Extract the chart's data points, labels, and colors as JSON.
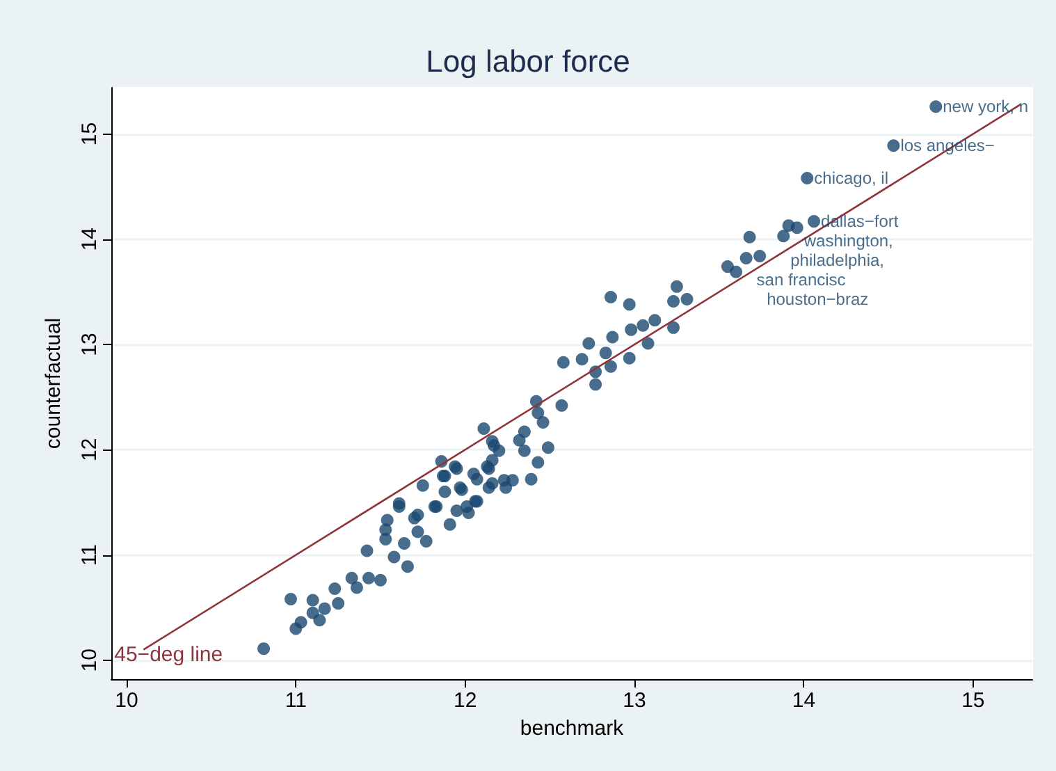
{
  "chart_data": {
    "type": "scatter",
    "title": "Log labor force",
    "xlabel": "benchmark",
    "ylabel": "counterfactual",
    "xlim": [
      9.91,
      15.35
    ],
    "ylim": [
      9.82,
      15.44
    ],
    "xticks": [
      10,
      11,
      12,
      13,
      14,
      15
    ],
    "yticks": [
      10,
      11,
      12,
      13,
      14,
      15
    ],
    "grid": "y",
    "legend": false,
    "marker": "circle",
    "series": [
      {
        "color": "#1a476f",
        "x": [
          14.78,
          14.53,
          14.02,
          14.06,
          13.91,
          13.96,
          13.68,
          13.88,
          13.74,
          13.66,
          13.55,
          13.6,
          10.81,
          10.97,
          11.0,
          11.03,
          11.1,
          11.1,
          11.14,
          11.17,
          11.23,
          11.25,
          11.33,
          11.36,
          11.42,
          11.43,
          11.5,
          11.53,
          11.54,
          11.58,
          11.61,
          11.64,
          11.66,
          11.7,
          11.72,
          11.75,
          11.77,
          11.82,
          11.86,
          11.87,
          11.88,
          11.91,
          11.94,
          11.95,
          11.98,
          12.02,
          12.05,
          12.07,
          12.11,
          12.13,
          12.16,
          12.17,
          11.53,
          13.25,
          13.23,
          13.31,
          12.86,
          12.97,
          13.23,
          13.12,
          13.05,
          12.98,
          12.87,
          12.73,
          13.08,
          12.97,
          12.83,
          12.86,
          12.77,
          12.77,
          12.69,
          12.58,
          12.57,
          12.42,
          12.43,
          12.46,
          12.49,
          12.43,
          12.39,
          12.35,
          12.32,
          12.35,
          12.2,
          12.16,
          12.16,
          12.14,
          12.23,
          12.28,
          12.24,
          12.14,
          12.07,
          11.95,
          11.88,
          12.06,
          11.97,
          11.61,
          11.83,
          12.01,
          11.72
        ],
        "values": [
          15.26,
          14.89,
          14.58,
          14.17,
          14.13,
          14.11,
          14.02,
          14.03,
          13.84,
          13.82,
          13.74,
          13.69,
          10.11,
          10.58,
          10.3,
          10.36,
          10.57,
          10.45,
          10.38,
          10.49,
          10.68,
          10.54,
          10.78,
          10.69,
          11.04,
          10.78,
          10.76,
          11.15,
          11.33,
          10.98,
          11.46,
          11.11,
          10.89,
          11.35,
          11.22,
          11.66,
          11.13,
          11.46,
          11.89,
          11.75,
          11.6,
          11.29,
          11.84,
          11.42,
          11.62,
          11.4,
          11.77,
          11.51,
          12.2,
          11.84,
          11.68,
          12.04,
          11.24,
          13.55,
          13.41,
          13.43,
          13.45,
          13.38,
          13.16,
          13.23,
          13.18,
          13.14,
          13.07,
          13.01,
          13.01,
          12.87,
          12.92,
          12.79,
          12.74,
          12.62,
          12.86,
          12.83,
          12.42,
          12.46,
          12.35,
          12.26,
          12.02,
          11.88,
          11.72,
          12.17,
          12.09,
          11.99,
          11.99,
          12.08,
          11.9,
          11.82,
          11.71,
          11.71,
          11.64,
          11.64,
          11.72,
          11.82,
          11.75,
          11.51,
          11.64,
          11.49,
          11.46,
          11.46,
          11.38
        ]
      },
      {
        "type": "line",
        "name": "45−deg line",
        "color": "#90353b",
        "x": [
          10.1,
          15.28
        ],
        "values": [
          10.1,
          15.28
        ],
        "marker": "none"
      }
    ],
    "annotations": [
      {
        "text": "new york, n",
        "x": 14.78,
        "y": 15.26
      },
      {
        "text": "los angeles−",
        "x": 14.53,
        "y": 14.89
      },
      {
        "text": "chicago, il",
        "x": 14.02,
        "y": 14.58
      },
      {
        "text": "dallas−fort",
        "x": 14.06,
        "y": 14.17
      },
      {
        "text": "washington,",
        "x": 13.96,
        "y": 14.11
      },
      {
        "text": "san francisc",
        "x": 13.68,
        "y": 14.02
      },
      {
        "text": "philadelphia,",
        "x": 13.88,
        "y": 14.03
      },
      {
        "text": "houston−braz",
        "x": 13.74,
        "y": 13.84
      }
    ]
  }
}
